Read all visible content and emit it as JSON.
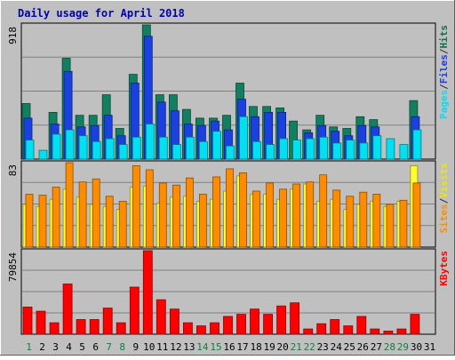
{
  "chart_data": {
    "type": "bar",
    "title": "Daily usage for April 2018",
    "categories": [
      "1",
      "2",
      "3",
      "4",
      "5",
      "6",
      "7",
      "8",
      "9",
      "10",
      "11",
      "12",
      "13",
      "14",
      "15",
      "16",
      "17",
      "18",
      "19",
      "20",
      "21",
      "22",
      "23",
      "24",
      "25",
      "26",
      "27",
      "28",
      "29",
      "30",
      "31"
    ],
    "weekend_categories": [
      "1",
      "7",
      "8",
      "14",
      "15",
      "21",
      "22",
      "28",
      "29"
    ],
    "panels": [
      {
        "name": "hits-files-pages",
        "axis_max_label": "918",
        "ylim": [
          0,
          918
        ],
        "right_label": [
          "Pages",
          "/",
          "Files",
          "/",
          "Hits"
        ],
        "right_label_colors": [
          "#00e0f0",
          "#303030",
          "#1a40e0",
          "#303030",
          "#107050"
        ],
        "series": [
          {
            "name": "Hits",
            "color": "#128060",
            "values": [
              380,
              0,
              320,
              690,
              300,
              300,
              440,
              210,
              580,
              918,
              440,
              440,
              340,
              280,
              280,
              300,
              520,
              360,
              360,
              350,
              260,
              200,
              300,
              220,
              210,
              290,
              270,
              0,
              0,
              400,
              0
            ]
          },
          {
            "name": "Files",
            "color": "#1a40e0",
            "values": [
              280,
              0,
              240,
              600,
              220,
              230,
              300,
              160,
              520,
              840,
              390,
              330,
              240,
              230,
              260,
              200,
              410,
              290,
              320,
              320,
              0,
              180,
              230,
              190,
              160,
              230,
              220,
              0,
              0,
              290,
              0
            ]
          },
          {
            "name": "Pages",
            "color": "#00e0f0",
            "values": [
              130,
              60,
              170,
              200,
              160,
              120,
              140,
              100,
              150,
              240,
              150,
              100,
              150,
              120,
              190,
              90,
              290,
              120,
              100,
              140,
              130,
              140,
              150,
              110,
              130,
              110,
              160,
              140,
              100,
              200,
              0
            ]
          }
        ]
      },
      {
        "name": "visits-sites",
        "axis_max_label": "83",
        "ylim": [
          0,
          83
        ],
        "right_label": [
          "Sites",
          "/",
          "Visits"
        ],
        "right_label_colors": [
          "#ff8c00",
          "#303030",
          "#e8e800"
        ],
        "series": [
          {
            "name": "Visits",
            "color": "#ffff30",
            "values": [
              42,
              40,
              47,
              57,
              49,
              42,
              40,
              37,
              59,
              60,
              43,
              49,
              50,
              45,
              47,
              55,
              70,
              52,
              52,
              47,
              57,
              62,
              45,
              47,
              37,
              42,
              45,
              40,
              45,
              80,
              0
            ]
          },
          {
            "name": "Sites",
            "color": "#ff8c00",
            "values": [
              52,
              51,
              59,
              83,
              64,
              67,
              50,
              45,
              80,
              76,
              63,
              61,
              68,
              52,
              69,
              77,
              73,
              55,
              63,
              57,
              62,
              64,
              71,
              56,
              50,
              54,
              52,
              42,
              46,
              63,
              0
            ]
          }
        ]
      },
      {
        "name": "kbytes",
        "axis_max_label": "79854",
        "ylim": [
          0,
          79854
        ],
        "right_label": [
          "KBytes"
        ],
        "right_label_colors": [
          "#ff0000"
        ],
        "series": [
          {
            "name": "KBytes",
            "color": "#ff0000",
            "values": [
              26000,
              22000,
              11000,
              48000,
              14000,
              14000,
              25000,
              11000,
              45000,
              79854,
              33000,
              24000,
              11000,
              8000,
              11000,
              17000,
              19000,
              24000,
              19000,
              27000,
              30000,
              5000,
              10000,
              14000,
              8000,
              17000,
              5000,
              3000,
              5000,
              19000,
              0
            ]
          }
        ]
      }
    ]
  }
}
